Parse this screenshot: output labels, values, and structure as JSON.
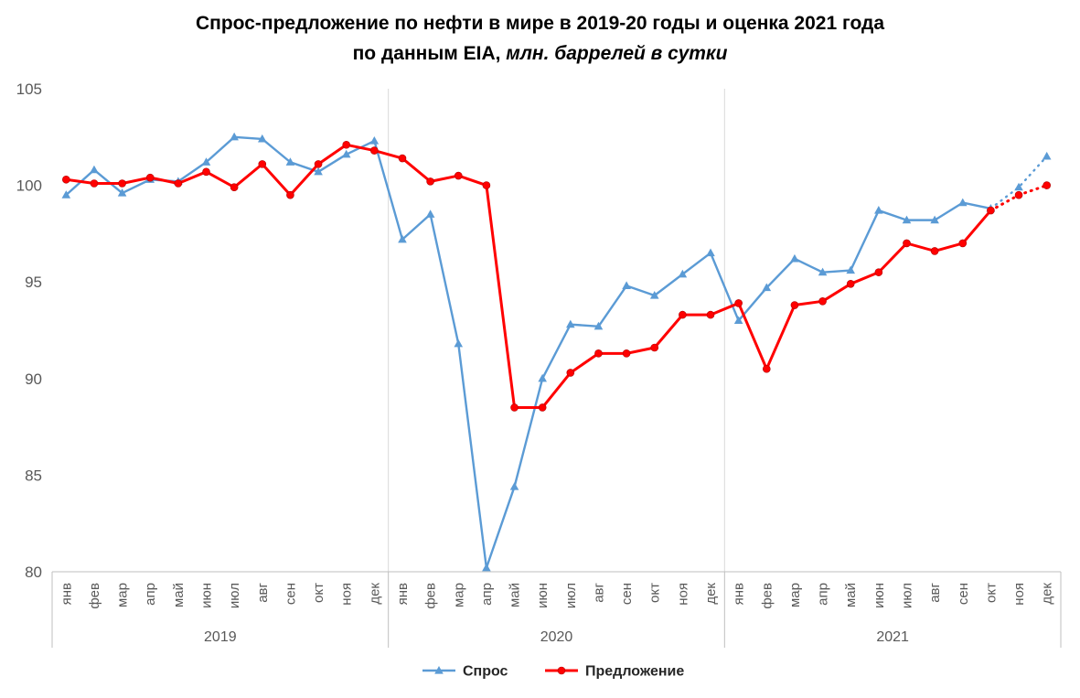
{
  "title": {
    "line1": "Спрос-предложение по нефти в мире в 2019-20 годы и оценка 2021 года",
    "line2_prefix": "по данным EIA,",
    "line2_italic": " млн. баррелей в сутки"
  },
  "chart_data": {
    "type": "line",
    "title": "Спрос-предложение по нефти в мире в 2019-20 годы и оценка 2021 года по данным EIA",
    "unit": "млн. баррелей в сутки",
    "ylim": [
      80,
      105
    ],
    "y_ticks": [
      80,
      85,
      90,
      95,
      100,
      105
    ],
    "grid": "vertical-year-separators-only",
    "legend_position": "bottom-center",
    "months": [
      "янв",
      "фев",
      "мар",
      "апр",
      "май",
      "июн",
      "июл",
      "авг",
      "сен",
      "окт",
      "ноя",
      "дек"
    ],
    "years": [
      "2019",
      "2020",
      "2021"
    ],
    "forecast_start_index": 33,
    "forecast_note": "segments after окт 2021 are dotted (estimate)",
    "series": [
      {
        "name": "Спрос",
        "color": "#5B9BD5",
        "marker": "triangle",
        "values": [
          99.5,
          100.8,
          99.6,
          100.3,
          100.2,
          101.2,
          102.5,
          102.4,
          101.2,
          100.7,
          101.6,
          102.3,
          97.2,
          98.5,
          91.8,
          80.2,
          84.4,
          90.0,
          92.8,
          92.7,
          94.8,
          94.3,
          95.4,
          96.5,
          93.0,
          94.7,
          96.2,
          95.5,
          95.6,
          98.7,
          98.2,
          98.2,
          99.1,
          98.8,
          99.9,
          101.5
        ]
      },
      {
        "name": "Предложение",
        "color": "#FF0000",
        "marker": "circle",
        "values": [
          100.3,
          100.1,
          100.1,
          100.4,
          100.1,
          100.7,
          99.9,
          101.1,
          99.5,
          101.1,
          102.1,
          101.8,
          101.4,
          100.2,
          100.5,
          100.0,
          88.5,
          88.5,
          90.3,
          91.3,
          91.3,
          91.6,
          93.3,
          93.3,
          93.9,
          90.5,
          93.8,
          94.0,
          94.9,
          95.5,
          97.0,
          96.6,
          97.0,
          98.7,
          99.5,
          100.0
        ]
      }
    ],
    "legend": [
      "Спрос",
      "Предложение"
    ],
    "axis_color": "#BFBFBF",
    "separator_color": "#D9D9D9"
  }
}
